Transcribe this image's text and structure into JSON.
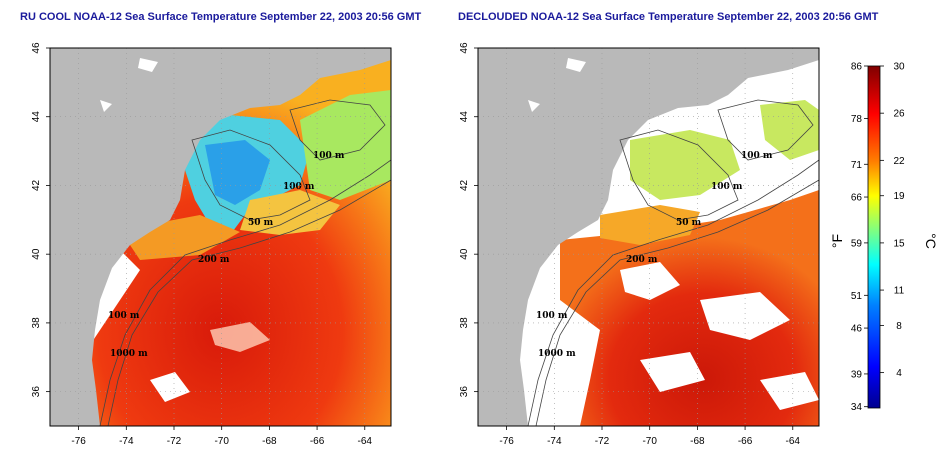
{
  "titles": {
    "left": "RU COOL NOAA-12 Sea Surface Temperature September 22, 2003 20:56 GMT",
    "right": "DECLOUDED NOAA-12 Sea Surface Temperature September 22, 2003 20:56 GMT"
  },
  "axes": {
    "lon_ticks": [
      "-76",
      "-74",
      "-72",
      "-70",
      "-68",
      "-66",
      "-64"
    ],
    "lat_ticks": [
      "46",
      "44",
      "42",
      "40",
      "38",
      "36"
    ],
    "lon_range": [
      -77.2,
      -62.9
    ],
    "lat_range": [
      35.0,
      46.0
    ]
  },
  "contour_labels": {
    "left": [
      "100 m",
      "100 m",
      "200 m",
      "50 m",
      "100 m",
      "1000 m"
    ],
    "right": [
      "100 m",
      "100 m",
      "200 m",
      "50 m",
      "100 m",
      "1000 m"
    ]
  },
  "colorbar": {
    "fahrenheit_ticks": [
      "86",
      "78",
      "71",
      "66",
      "59",
      "51",
      "46",
      "39",
      "34"
    ],
    "celsius_ticks": [
      "30",
      "26",
      "22",
      "19",
      "15",
      "11",
      "8",
      "4"
    ],
    "fahrenheit_unit": "°F",
    "celsius_unit": "°C",
    "range_c": [
      1,
      30
    ],
    "colors": [
      "#00008f",
      "#0000ff",
      "#0080ff",
      "#00ffff",
      "#80ff80",
      "#ffff00",
      "#ff8000",
      "#ff0000",
      "#800000"
    ]
  },
  "colors": {
    "land": "#b9b9b9",
    "cloud": "#ffffff",
    "title": "#1a1a9c"
  }
}
